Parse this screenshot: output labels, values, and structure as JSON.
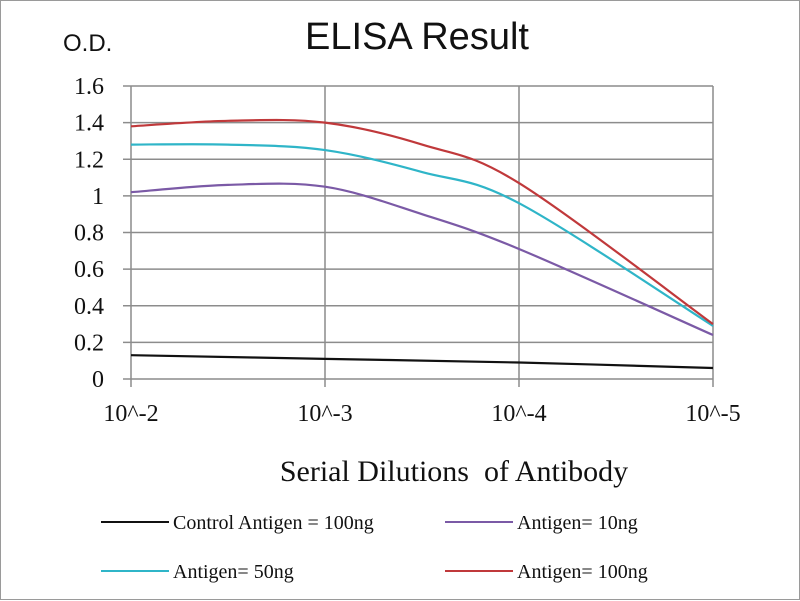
{
  "chart_data": {
    "type": "line",
    "title": "ELISA Result",
    "ylabel": "O.D.",
    "xlabel": "Serial Dilutions  of Antibody",
    "x_tick_labels": [
      "10^-2",
      "10^-3",
      "10^-4",
      "10^-5"
    ],
    "y_tick_labels": [
      "0",
      "0.2",
      "0.4",
      "0.6",
      "0.8",
      "1",
      "1.2",
      "1.4",
      "1.6"
    ],
    "ylim": [
      0,
      1.6
    ],
    "x_scale": "log",
    "x": [
      0.01,
      0.003162,
      0.001,
      0.000316,
      0.0001,
      1e-05
    ],
    "grid": "vertical and horizontal",
    "legend_position": "bottom",
    "series": [
      {
        "name": "Control Antigen = 100ng",
        "color": "#111111",
        "x": [
          0.01,
          0.001,
          0.0001,
          1e-05
        ],
        "values": [
          0.13,
          0.11,
          0.09,
          0.06
        ]
      },
      {
        "name": "Antigen= 10ng",
        "color": "#7b5aa6",
        "x": [
          0.01,
          0.003162,
          0.001,
          0.000316,
          0.0001,
          1e-05
        ],
        "values": [
          1.02,
          1.06,
          1.05,
          0.9,
          0.71,
          0.24
        ]
      },
      {
        "name": "Antigen= 50ng",
        "color": "#2fb5c8",
        "x": [
          0.01,
          0.003162,
          0.001,
          0.000316,
          0.0001,
          1e-05
        ],
        "values": [
          1.28,
          1.28,
          1.25,
          1.13,
          0.96,
          0.29
        ]
      },
      {
        "name": "Antigen= 100ng",
        "color": "#c0393b",
        "x": [
          0.01,
          0.003162,
          0.001,
          0.000316,
          0.0001,
          1e-05
        ],
        "values": [
          1.38,
          1.41,
          1.4,
          1.28,
          1.07,
          0.3
        ]
      }
    ]
  }
}
